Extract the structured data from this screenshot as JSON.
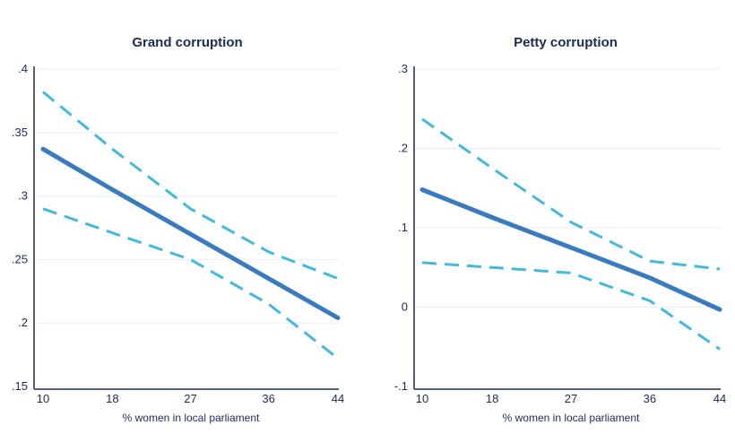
{
  "chart_data": [
    {
      "type": "line",
      "title": "Grand corruption",
      "xlabel": "% women in local parliament",
      "ylabel": "",
      "x": [
        10,
        18,
        27,
        36,
        44
      ],
      "xticks": [
        "10",
        "18",
        "27",
        "36",
        "44"
      ],
      "yticks": [
        0.4,
        0.35,
        0.3,
        0.25,
        0.2,
        0.15
      ],
      "ytick_labels": [
        ".4",
        ".35",
        ".3",
        ".25",
        ".2",
        ".15"
      ],
      "ylim": [
        0.15,
        0.4
      ],
      "grid": true,
      "series": [
        {
          "role": "estimate",
          "values": [
            0.337,
            0.305,
            0.27,
            0.235,
            0.204
          ]
        },
        {
          "role": "upper",
          "values": [
            0.382,
            0.337,
            0.29,
            0.256,
            0.235
          ]
        },
        {
          "role": "lower",
          "values": [
            0.29,
            0.271,
            0.25,
            0.215,
            0.172
          ]
        }
      ]
    },
    {
      "type": "line",
      "title": "Petty corruption",
      "xlabel": "% women in local parliament",
      "ylabel": "",
      "x": [
        10,
        18,
        27,
        36,
        44
      ],
      "xticks": [
        "10",
        "18",
        "27",
        "36",
        "44"
      ],
      "yticks": [
        0.3,
        0.2,
        0.1,
        0,
        -0.1
      ],
      "ytick_labels": [
        ".3",
        ".2",
        ".1",
        "0",
        "-.1"
      ],
      "ylim": [
        -0.1,
        0.3
      ],
      "grid": true,
      "series": [
        {
          "role": "estimate",
          "values": [
            0.148,
            0.113,
            0.075,
            0.037,
            -0.003
          ]
        },
        {
          "role": "upper",
          "values": [
            0.237,
            0.175,
            0.107,
            0.058,
            0.048
          ]
        },
        {
          "role": "lower",
          "values": [
            0.056,
            0.05,
            0.043,
            0.008,
            -0.053
          ]
        }
      ]
    }
  ],
  "colors": {
    "estimate": "#3a7bbf",
    "interval": "#43b8e0",
    "axis": "#1f2a52",
    "grid": "#e6eef5"
  }
}
